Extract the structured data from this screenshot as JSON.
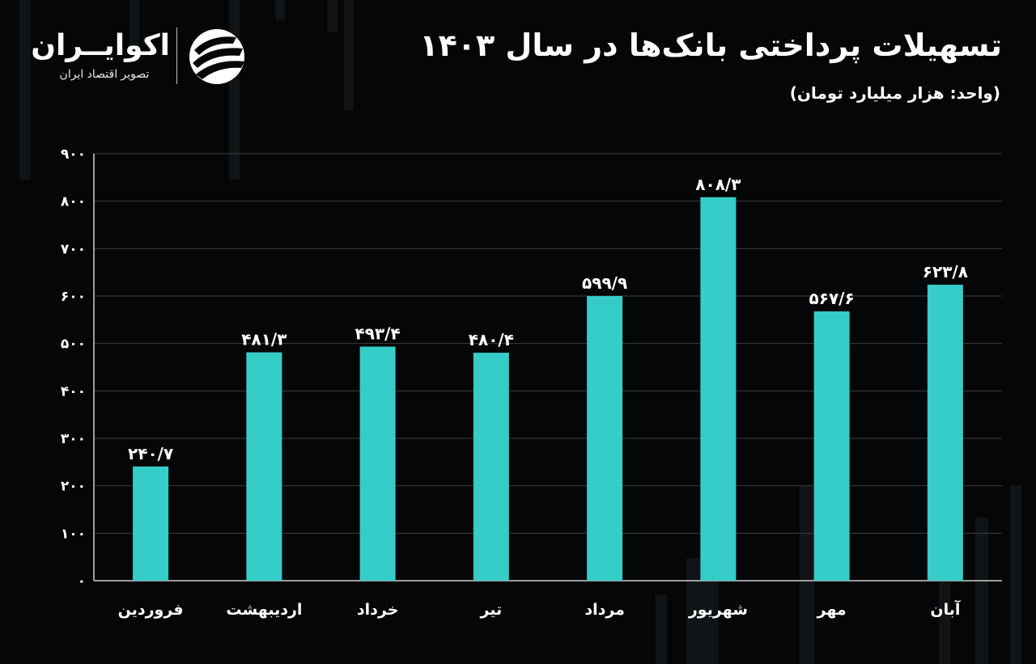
{
  "header": {
    "title": "تسهیلات پرداختی بانک‌ها در سال ۱۴۰۳",
    "unit": "(واحد: هزار میلیارد تومان)"
  },
  "logo": {
    "name": "اکوایــران",
    "tagline": "تصویر اقتصاد ایران",
    "mark_icon": "ecoiran-swirl-icon"
  },
  "colors": {
    "background": "#050607",
    "bar": "#36cdc9",
    "text": "#ffffff",
    "grid": "#3a3d40"
  },
  "chart_data": {
    "type": "bar",
    "categories": [
      "فروردین",
      "اردیبهشت",
      "خرداد",
      "تیر",
      "مرداد",
      "شهریور",
      "مهر",
      "آبان"
    ],
    "values": [
      240.7,
      481.3,
      493.4,
      480.4,
      599.9,
      808.3,
      567.6,
      623.8
    ],
    "data_labels": [
      "۲۴۰/۷",
      "۴۸۱/۳",
      "۴۹۳/۴",
      "۴۸۰/۴",
      "۵۹۹/۹",
      "۸۰۸/۳",
      "۵۶۷/۶",
      "۶۲۳/۸"
    ],
    "y_ticks": [
      0,
      100,
      200,
      300,
      400,
      500,
      600,
      700,
      800,
      900
    ],
    "y_tick_labels": [
      "۰",
      "۱۰۰",
      "۲۰۰",
      "۳۰۰",
      "۴۰۰",
      "۵۰۰",
      "۶۰۰",
      "۷۰۰",
      "۸۰۰",
      "۹۰۰"
    ],
    "ylim": [
      0,
      900
    ],
    "grid": true,
    "legend": "none"
  }
}
